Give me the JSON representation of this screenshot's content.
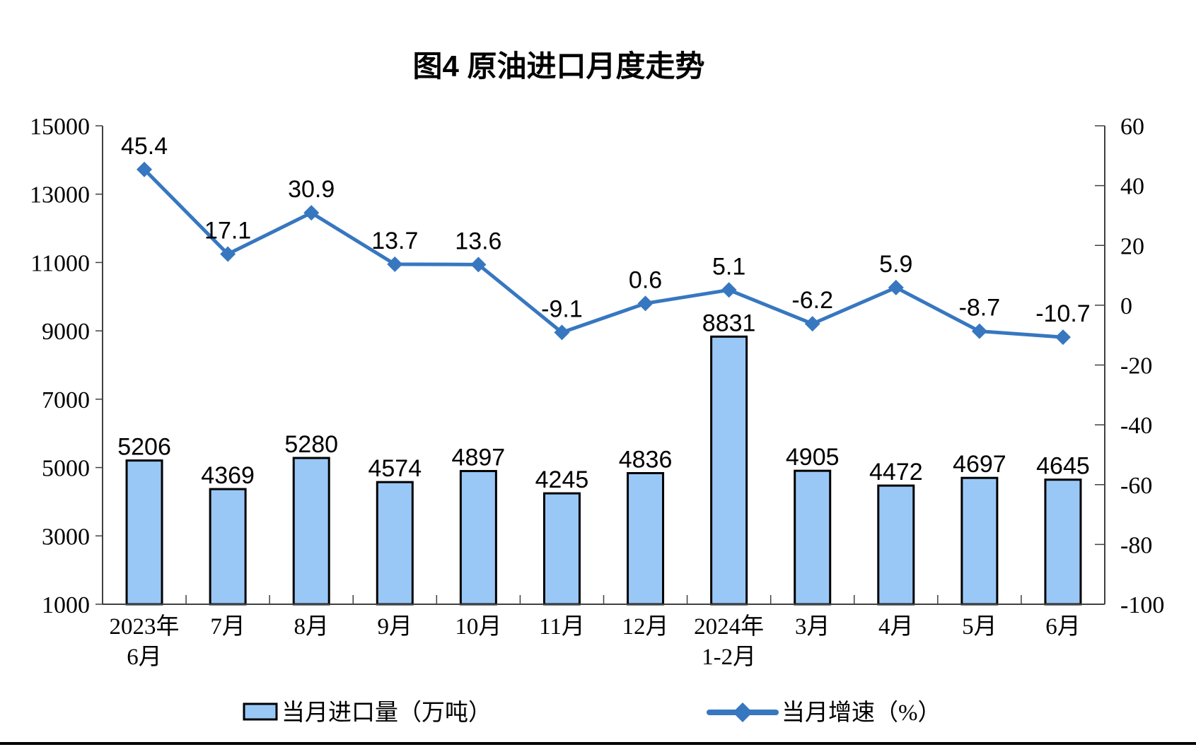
{
  "title": "图4 原油进口月度走势",
  "chart_data": {
    "type": "bar+line",
    "categories": [
      [
        "2023年",
        "6月"
      ],
      [
        "7月"
      ],
      [
        "8月"
      ],
      [
        "9月"
      ],
      [
        "10月"
      ],
      [
        "11月"
      ],
      [
        "12月"
      ],
      [
        "2024年",
        "1-2月"
      ],
      [
        "3月"
      ],
      [
        "4月"
      ],
      [
        "5月"
      ],
      [
        "6月"
      ]
    ],
    "series": [
      {
        "name": "当月进口量（万吨）",
        "type": "bar",
        "axis": "left",
        "values": [
          5206,
          4369,
          5280,
          4574,
          4897,
          4245,
          4836,
          8831,
          4905,
          4472,
          4697,
          4645
        ],
        "labels": [
          "5206",
          "4369",
          "5280",
          "4574",
          "4897",
          "4245",
          "4836",
          "8831",
          "4905",
          "4472",
          "4697",
          "4645"
        ],
        "fill": "#9AC8F6",
        "stroke": "#000000"
      },
      {
        "name": "当月增速（%）",
        "type": "line",
        "axis": "right",
        "values": [
          45.4,
          17.1,
          30.9,
          13.7,
          13.6,
          -9.1,
          0.6,
          5.1,
          -6.2,
          5.9,
          -8.7,
          -10.7
        ],
        "labels": [
          "45.4",
          "17.1",
          "30.9",
          "13.7",
          "13.6",
          "-9.1",
          "0.6",
          "5.1",
          "-6.2",
          "5.9",
          "-8.7",
          "-10.7"
        ],
        "color": "#3777C0"
      }
    ],
    "left_axis": {
      "min": 1000,
      "max": 15000,
      "ticks": [
        15000,
        13000,
        11000,
        9000,
        7000,
        5000,
        3000,
        1000
      ]
    },
    "right_axis": {
      "min": -100,
      "max": 60,
      "ticks": [
        60,
        40,
        20,
        0,
        -20,
        -40,
        -60,
        -80,
        -100
      ]
    },
    "grid": false,
    "legend_position": "bottom",
    "axis_color": "#404040",
    "text_color": "#000000"
  }
}
